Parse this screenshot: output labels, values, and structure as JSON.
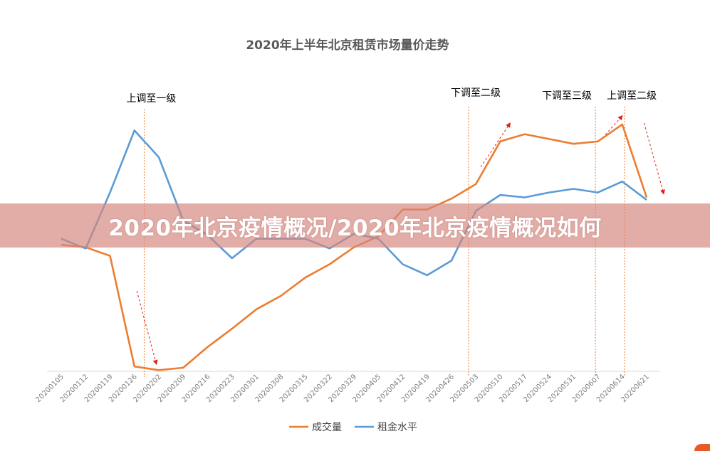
{
  "overlay": {
    "headline": "2020年北京疫情概况/2020年北京疫情概况如何"
  },
  "chart_data": {
    "type": "line",
    "title": "2020年上半年北京租赁市场量价走势",
    "xlabel": "",
    "ylabel": "",
    "ylim": [
      0,
      100
    ],
    "grid": false,
    "legend_position": "bottom",
    "categories": [
      "20200105",
      "20200112",
      "20200119",
      "20200126",
      "20200202",
      "20200209",
      "20200216",
      "20200223",
      "20200301",
      "20200308",
      "20200315",
      "20200322",
      "20200329",
      "20200405",
      "20200412",
      "20200419",
      "20200426",
      "20200503",
      "20200510",
      "20200517",
      "20200524",
      "20200531",
      "20200607",
      "20200614",
      "20200621"
    ],
    "series": [
      {
        "name": "成交量",
        "color": "#ed7d31",
        "values": [
          52,
          51,
          47.5,
          2,
          0.5,
          1.5,
          10,
          17.5,
          25.5,
          31,
          38.5,
          44,
          51,
          55.5,
          66.5,
          66.5,
          71,
          77,
          94.5,
          97.5,
          95.5,
          93.5,
          94.5,
          101.5,
          71.5
        ]
      },
      {
        "name": "租金水平",
        "color": "#5b9bd5",
        "values": [
          54.5,
          50.5,
          73.5,
          99,
          88,
          62,
          56,
          46.5,
          54.5,
          54.5,
          54.5,
          50.5,
          56.5,
          54.5,
          44,
          39.5,
          45.5,
          66,
          72.5,
          71.5,
          73.5,
          75,
          73.5,
          78,
          70.5
        ]
      }
    ],
    "annotations": [
      {
        "label": "上调至一级",
        "category_index": 3.4
      },
      {
        "label": "下调至二级",
        "category_index": 16.7
      },
      {
        "label": "下调至三级",
        "category_index": 21.9
      },
      {
        "label": "上调至二级",
        "category_index": 23.1
      }
    ],
    "trend_arrows": [
      {
        "from": [
          3.1,
          33
        ],
        "to": [
          3.9,
          3
        ]
      },
      {
        "from": [
          17.2,
          84
        ],
        "to": [
          18.4,
          102
        ]
      },
      {
        "from": [
          22.2,
          96
        ],
        "to": [
          23,
          105
        ]
      },
      {
        "from": [
          23.9,
          102
        ],
        "to": [
          24.7,
          73
        ]
      }
    ],
    "arrow_color": "#e0201c",
    "event_line_color": "#ed7d31"
  }
}
